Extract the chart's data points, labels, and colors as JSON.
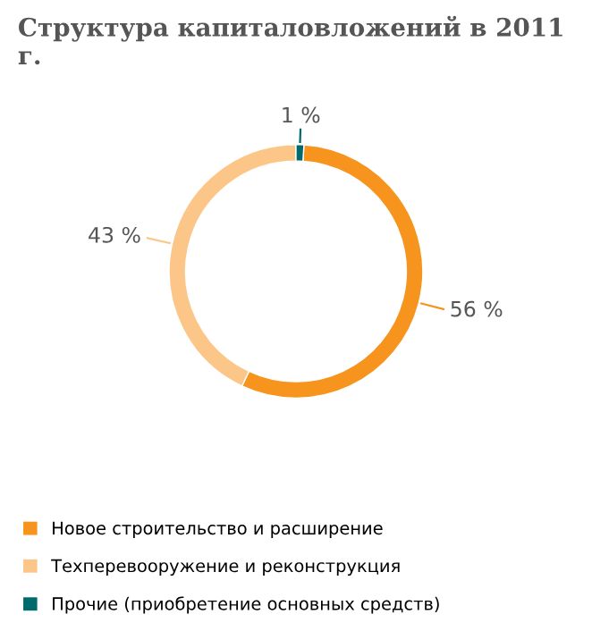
{
  "chart_data": {
    "type": "donut",
    "title": "Структура капиталовложений в 2011 г.",
    "categories": [
      "Новое строительство и расширение",
      "Техперевооружение и реконструкция",
      "Прочие (приобретение основных средств)"
    ],
    "values": [
      56,
      43,
      1
    ],
    "colors": [
      "#f7941d",
      "#fdc689",
      "#00696b"
    ],
    "value_labels": [
      "56 %",
      "43 %",
      "1 %"
    ],
    "legend": "bottom"
  }
}
